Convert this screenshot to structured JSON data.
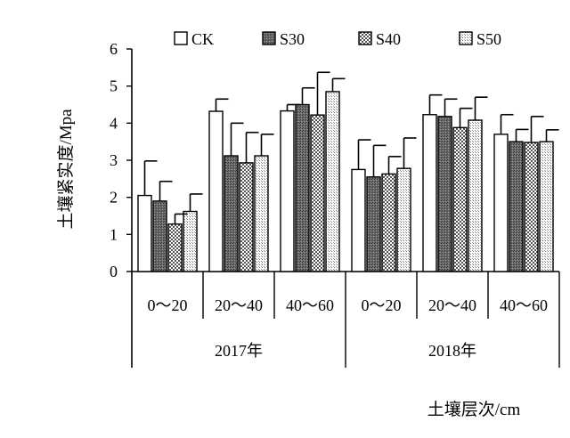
{
  "chart_data": {
    "type": "bar",
    "title": "",
    "ylabel": "土壤紧实度/Mpa",
    "xlabel": "土壤层次/cm",
    "ylim": [
      0,
      6
    ],
    "yticks": [
      "0",
      "1",
      "2",
      "3",
      "4",
      "5",
      "6"
    ],
    "legend_position": "top",
    "groups": [
      {
        "label": "2017年",
        "categories": [
          "0～20",
          "20～40",
          "40～60"
        ]
      },
      {
        "label": "2018年",
        "categories": [
          "0～20",
          "20～40",
          "40～60"
        ]
      }
    ],
    "series": [
      {
        "name": "CK",
        "pattern": "white",
        "values": [
          2.05,
          4.32,
          4.33,
          2.75,
          4.23,
          3.7
        ],
        "errors": [
          0.93,
          0.33,
          0.17,
          0.8,
          0.53,
          0.53
        ]
      },
      {
        "name": "S30",
        "pattern": "dark",
        "values": [
          1.9,
          3.12,
          4.5,
          2.55,
          4.18,
          3.5
        ],
        "errors": [
          0.53,
          0.88,
          0.45,
          0.85,
          0.47,
          0.33
        ]
      },
      {
        "name": "S40",
        "pattern": "checker",
        "values": [
          1.28,
          2.93,
          4.22,
          2.63,
          3.88,
          3.48
        ],
        "errors": [
          0.27,
          0.82,
          1.15,
          0.47,
          0.52,
          0.7
        ]
      },
      {
        "name": "S50",
        "pattern": "light",
        "values": [
          1.62,
          3.12,
          4.85,
          2.78,
          4.08,
          3.5
        ],
        "errors": [
          0.47,
          0.58,
          0.35,
          0.82,
          0.62,
          0.32
        ]
      }
    ]
  }
}
